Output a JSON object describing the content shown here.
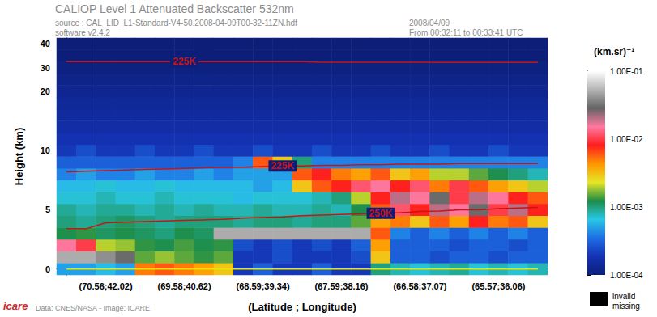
{
  "chart_data": {
    "type": "heatmap",
    "title": "CALIOP Level 1 Attenuated Backscatter 532nm",
    "annotations": {
      "source": "source : CAL_LID_L1-Standard-V4-50.2008-04-09T00-32-11ZN.hdf",
      "software": "software v2.4.2",
      "date": "2008/04/09",
      "time": "From 00:32:11 to 00:33:41 UTC",
      "credits": "Data: CNES/NASA - Image: ICARE",
      "logo": "icare",
      "missing_key": [
        "invalid",
        "missing"
      ]
    },
    "xlabel": "(Latitude ; Longitude)",
    "ylabel": "Height (km)",
    "categories": [
      null,
      null,
      "(70.56;42.02)",
      null,
      null,
      null,
      "(69.58;40.62)",
      null,
      null,
      null,
      "(68.59;39.34)",
      null,
      null,
      null,
      "(67.59;38.16)",
      null,
      null,
      null,
      "(66.58;37.07)",
      null,
      null,
      null,
      "(65.57;36.06)",
      null,
      null
    ],
    "y": [
      0,
      1,
      2,
      3,
      4,
      5,
      6,
      7,
      8,
      9,
      10,
      12,
      14,
      16,
      18,
      20,
      25,
      30,
      35,
      40
    ],
    "yticks": [
      0,
      5,
      10,
      20,
      30,
      40
    ],
    "cells": [
      [
        0.0005,
        0.0005,
        0.0006,
        0.0005,
        0.005,
        0.006,
        0.005,
        0.004,
        0.003,
        0.0002,
        0.0003,
        0.0002,
        0.0002,
        0.0003,
        0.0002,
        0.0002,
        0.001,
        0.0008,
        0.0007,
        0.0008,
        0.0009,
        0.0007,
        0.0008,
        0.0007,
        0.0008
      ],
      [
        0.05,
        0.05,
        0.04,
        0.03,
        0.0015,
        0.0018,
        0.0015,
        0.0013,
        0.0015,
        0.0002,
        0.0002,
        0.00025,
        0.0002,
        0.0002,
        0.0002,
        0.00025,
        0.003,
        0.0003,
        0.0003,
        0.00025,
        0.0003,
        0.0003,
        0.00025,
        0.0003,
        0.0003
      ],
      [
        0.015,
        0.01,
        0.002,
        0.0018,
        0.0013,
        0.0012,
        0.0014,
        0.0012,
        0.0013,
        0.00025,
        0.0002,
        0.00025,
        0.0002,
        0.00025,
        0.0002,
        0.0003,
        0.004,
        0.0003,
        0.0003,
        0.0003,
        0.00025,
        0.0003,
        0.0003,
        0.00025,
        0.0003
      ],
      [
        0.0012,
        0.0013,
        0.0011,
        0.0012,
        0.0011,
        0.001,
        0.0012,
        0.0011,
        0.05,
        0.05,
        0.05,
        0.05,
        0.05,
        0.05,
        0.05,
        0.05,
        0.006,
        0.0004,
        0.0003,
        0.0004,
        0.0003,
        0.0004,
        0.0003,
        0.0004,
        0.0003
      ],
      [
        0.001,
        0.0009,
        0.001,
        0.0011,
        0.001,
        0.0009,
        0.001,
        0.001,
        0.001,
        0.0009,
        0.001,
        0.001,
        0.0009,
        0.001,
        0.001,
        0.0015,
        0.004,
        0.005,
        0.003,
        0.006,
        0.004,
        0.008,
        0.005,
        0.006,
        0.003
      ],
      [
        0.0009,
        0.0008,
        0.0009,
        0.0009,
        0.0008,
        0.0009,
        0.0008,
        0.0009,
        0.0008,
        0.0008,
        0.0009,
        0.0008,
        0.0008,
        0.0009,
        0.0008,
        0.0012,
        0.006,
        0.012,
        0.008,
        0.02,
        0.015,
        0.03,
        0.01,
        0.02,
        0.008
      ],
      [
        0.0007,
        0.0007,
        0.0008,
        0.0007,
        0.0007,
        0.0008,
        0.0007,
        0.0007,
        0.0007,
        0.0006,
        0.0007,
        0.0007,
        0.0007,
        0.0008,
        0.001,
        0.002,
        0.008,
        0.02,
        0.015,
        0.03,
        0.01,
        0.02,
        0.015,
        0.008,
        0.006
      ],
      [
        0.0006,
        0.0006,
        0.0007,
        0.0006,
        0.0006,
        0.0007,
        0.0006,
        0.0006,
        0.0006,
        0.0006,
        0.0005,
        0.0006,
        0.003,
        0.006,
        0.008,
        0.012,
        0.015,
        0.008,
        0.012,
        0.005,
        0.01,
        0.006,
        0.004,
        0.003,
        0.002
      ],
      [
        0.0004,
        0.0005,
        0.0004,
        0.0004,
        0.0005,
        0.0004,
        0.0004,
        0.0005,
        0.0004,
        0.0005,
        0.0005,
        0.0005,
        0.006,
        0.008,
        0.005,
        0.004,
        0.006,
        0.003,
        0.004,
        0.002,
        0.002,
        0.0015,
        0.0012,
        0.001,
        0.0008
      ],
      [
        0.0003,
        0.0003,
        0.0003,
        0.0003,
        0.0003,
        0.0003,
        0.0003,
        0.0003,
        0.0003,
        0.0004,
        0.006,
        0.003,
        0.001,
        0.0004,
        0.0004,
        0.0004,
        0.0004,
        0.0004,
        0.0004,
        0.0004,
        0.0004,
        0.0004,
        0.0004,
        0.0004,
        0.0004
      ],
      [
        0.0002,
        0.00025,
        0.0002,
        0.0002,
        0.00025,
        0.0002,
        0.0002,
        0.00025,
        0.0002,
        0.0002,
        0.00025,
        0.0002,
        0.0002,
        0.00025,
        0.0002,
        0.0002,
        0.00025,
        0.0002,
        0.0002,
        0.00025,
        0.0002,
        0.0002,
        0.00025,
        0.0002,
        0.0002
      ],
      [
        0.00018,
        0.00018,
        0.00018,
        0.00018,
        0.00018,
        0.00018,
        0.00018,
        0.00018,
        0.00018,
        0.00018,
        0.00018,
        0.00018,
        0.00018,
        0.00018,
        0.00018,
        0.00018,
        0.00018,
        0.00018,
        0.00018,
        0.00018,
        0.00018,
        0.00018,
        0.00018,
        0.00018,
        0.00018
      ],
      [
        0.00016,
        0.00016,
        0.00016,
        0.00016,
        0.00016,
        0.00016,
        0.00016,
        0.00016,
        0.00016,
        0.00016,
        0.00016,
        0.00016,
        0.00016,
        0.00016,
        0.00016,
        0.00016,
        0.00016,
        0.00016,
        0.00016,
        0.00016,
        0.00016,
        0.00016,
        0.00016,
        0.00016,
        0.00016
      ],
      [
        0.00015,
        0.00015,
        0.00015,
        0.00015,
        0.00015,
        0.00015,
        0.00015,
        0.00015,
        0.00015,
        0.00015,
        0.00015,
        0.00015,
        0.00015,
        0.00015,
        0.00015,
        0.00015,
        0.00015,
        0.00015,
        0.00015,
        0.00015,
        0.00015,
        0.00015,
        0.00015,
        0.00015,
        0.00015
      ],
      [
        0.00014,
        0.00014,
        0.00014,
        0.00014,
        0.00014,
        0.00014,
        0.00014,
        0.00014,
        0.00014,
        0.00014,
        0.00014,
        0.00014,
        0.00014,
        0.00014,
        0.00014,
        0.00014,
        0.00014,
        0.00014,
        0.00014,
        0.00014,
        0.00014,
        0.00014,
        0.00014,
        0.00014,
        0.00014
      ],
      [
        0.00013,
        0.00013,
        0.00013,
        0.00013,
        0.00013,
        0.00013,
        0.00013,
        0.00013,
        0.00013,
        0.00013,
        0.00013,
        0.00013,
        0.00013,
        0.00013,
        0.00013,
        0.00013,
        0.00013,
        0.00013,
        0.00013,
        0.00013,
        0.00013,
        0.00013,
        0.00013,
        0.00013,
        0.00013
      ],
      [
        0.00012,
        0.00012,
        0.00012,
        0.00012,
        0.00012,
        0.00012,
        0.00012,
        0.00012,
        0.00012,
        0.00012,
        0.00012,
        0.00012,
        0.00012,
        0.00012,
        0.00012,
        0.00012,
        0.00012,
        0.00012,
        0.00012,
        0.00012,
        0.00012,
        0.00012,
        0.00012,
        0.00012,
        0.00012
      ],
      [
        0.00011,
        0.00011,
        0.00011,
        0.00011,
        0.00011,
        0.00011,
        0.00011,
        0.00011,
        0.00011,
        0.00011,
        0.00011,
        0.00011,
        0.00011,
        0.00011,
        0.00011,
        0.00011,
        0.00011,
        0.00011,
        0.00011,
        0.00011,
        0.00011,
        0.00011,
        0.00011,
        0.00011,
        0.00011
      ],
      [
        0.0001,
        0.0001,
        0.0001,
        0.0001,
        0.0001,
        0.0001,
        0.0001,
        0.0001,
        0.0001,
        0.0001,
        0.0001,
        0.0001,
        0.0001,
        0.0001,
        0.0001,
        0.0001,
        0.0001,
        0.0001,
        0.0001,
        0.0001,
        0.0001,
        0.0001,
        0.0001,
        0.0001,
        0.0001
      ],
      [
        0.0001,
        0.0001,
        0.0001,
        0.0001,
        0.0001,
        0.0001,
        0.0001,
        0.0001,
        0.0001,
        0.0001,
        0.0001,
        0.0001,
        0.0001,
        0.0001,
        0.0001,
        0.0001,
        0.0001,
        0.0001,
        0.0001,
        0.0001,
        0.0001,
        0.0001,
        0.0001,
        0.0001,
        0.0001
      ]
    ],
    "colorbar": {
      "title": "(km.sr)⁻¹",
      "lim": [
        0.0001,
        0.1
      ],
      "ticks": [
        {
          "value": 0.0001,
          "label": "1.00E-04"
        },
        {
          "value": 0.001,
          "label": "1.00E-03"
        },
        {
          "value": 0.01,
          "label": "1.00E-02"
        },
        {
          "value": 0.1,
          "label": "1.00E-01"
        }
      ]
    },
    "series": [
      {
        "name": "225K",
        "type": "line",
        "color": "#c81414",
        "values": [
          32.5,
          32.5,
          32.5,
          32.5,
          32.5,
          32.5,
          32.5,
          32.5,
          32.5,
          32.5,
          32.5,
          32.5,
          32.5,
          32.3,
          32.3,
          32.3,
          32.3,
          32.3,
          32.3,
          32.2,
          32.2,
          32.2,
          32.2,
          32.2,
          32.2
        ]
      },
      {
        "name": "225K",
        "type": "line",
        "color": "#c81414",
        "values": [
          8.2,
          8.25,
          8.3,
          8.35,
          8.4,
          8.45,
          8.5,
          8.55,
          8.6,
          8.6,
          8.65,
          8.7,
          8.7,
          8.75,
          8.75,
          8.8,
          8.8,
          8.85,
          8.85,
          8.85,
          8.9,
          8.9,
          8.9,
          8.9,
          8.9
        ]
      },
      {
        "name": "250K",
        "type": "line",
        "color": "#c81414",
        "values": [
          3.4,
          3.4,
          3.9,
          3.95,
          4.0,
          4.05,
          4.1,
          4.15,
          4.2,
          4.3,
          4.35,
          4.4,
          4.5,
          4.55,
          4.6,
          4.65,
          4.7,
          4.75,
          4.85,
          4.9,
          5.0,
          5.0,
          5.1,
          5.15,
          5.2
        ]
      },
      {
        "type": "line",
        "color": "#e6e600",
        "values": [
          0,
          0,
          0,
          0,
          0,
          0,
          0,
          0,
          0,
          0,
          0,
          0,
          0,
          0,
          0,
          0,
          0,
          0,
          0,
          0,
          0,
          0,
          0,
          0,
          0
        ]
      }
    ]
  }
}
